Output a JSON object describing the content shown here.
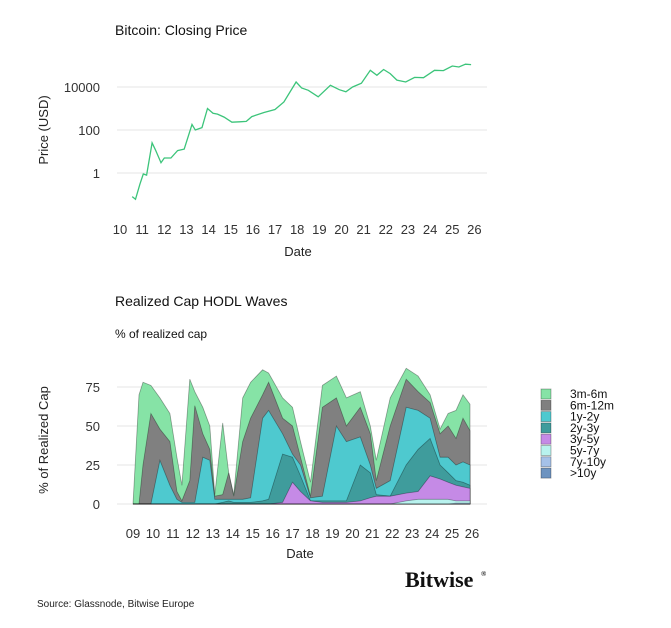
{
  "chart_data": [
    {
      "type": "line",
      "title": "Bitcoin: Closing Price",
      "xlabel": "Date",
      "ylabel": "Price (USD)",
      "yscale": "log",
      "ylim": [
        0.03,
        150000
      ],
      "xlim": [
        2009.9,
        2026.1
      ],
      "grid": true,
      "x_ticks": [
        "10",
        "11",
        "12",
        "13",
        "14",
        "15",
        "16",
        "17",
        "18",
        "19",
        "20",
        "21",
        "22",
        "23",
        "24",
        "25",
        "26"
      ],
      "y_ticks": [
        "1",
        "100",
        "10000"
      ],
      "color": "#3cc47a",
      "x": [
        2010.55,
        2010.7,
        2010.9,
        2011.05,
        2011.2,
        2011.45,
        2011.6,
        2011.85,
        2012.0,
        2012.3,
        2012.6,
        2012.9,
        2013.25,
        2013.4,
        2013.7,
        2013.95,
        2014.2,
        2014.4,
        2014.7,
        2015.05,
        2015.4,
        2015.7,
        2015.95,
        2016.5,
        2017.0,
        2017.4,
        2017.95,
        2018.2,
        2018.5,
        2018.95,
        2019.5,
        2019.9,
        2020.2,
        2020.5,
        2020.9,
        2021.3,
        2021.6,
        2021.9,
        2022.2,
        2022.5,
        2022.9,
        2023.3,
        2023.7,
        2024.2,
        2024.6,
        2025.0,
        2025.3,
        2025.6,
        2025.85
      ],
      "y": [
        0.08,
        0.06,
        0.3,
        0.9,
        0.8,
        25,
        12,
        3,
        5,
        5,
        11,
        13,
        180,
        100,
        130,
        1000,
        600,
        550,
        400,
        230,
        240,
        250,
        420,
        650,
        900,
        2000,
        17000,
        9000,
        7000,
        3500,
        12000,
        7500,
        6000,
        10000,
        15000,
        60000,
        35000,
        65000,
        42000,
        21000,
        17000,
        28000,
        27000,
        60000,
        58000,
        95000,
        85000,
        115000,
        110000
      ]
    },
    {
      "type": "area",
      "stacked": true,
      "title": "Realized Cap HODL Waves",
      "subtitle": "% of realized cap",
      "xlabel": "Date",
      "ylabel": "% of Realized Cap",
      "ylim": [
        0,
        90
      ],
      "xlim": [
        2008.9,
        2026.1
      ],
      "grid": true,
      "legend_position": "right",
      "x_ticks": [
        "09",
        "10",
        "11",
        "12",
        "13",
        "14",
        "15",
        "16",
        "17",
        "18",
        "19",
        "20",
        "21",
        "22",
        "23",
        "24",
        "25",
        "26"
      ],
      "y_ticks": [
        "0",
        "25",
        "50",
        "75"
      ],
      "x": [
        2009.0,
        2009.3,
        2009.5,
        2009.9,
        2010.35,
        2010.85,
        2011.2,
        2011.45,
        2011.85,
        2012.1,
        2012.5,
        2012.85,
        2013.1,
        2013.5,
        2013.8,
        2014.05,
        2014.5,
        2014.9,
        2015.5,
        2015.8,
        2016.5,
        2017.0,
        2017.4,
        2017.9,
        2018.5,
        2019.2,
        2019.7,
        2020.4,
        2020.9,
        2021.2,
        2021.9,
        2022.7,
        2023.3,
        2023.9,
        2024.4,
        2024.8,
        2025.2,
        2025.55,
        2025.9
      ],
      "series": [
        {
          "name": ">10y",
          "color": "#6d93c0",
          "values": [
            0,
            0,
            0,
            0,
            0,
            0,
            0,
            0,
            0,
            0,
            0,
            0,
            0,
            0,
            0,
            0,
            0,
            0,
            0,
            0,
            0,
            0,
            0,
            0,
            0,
            0,
            0,
            0,
            0,
            0,
            0,
            0,
            0,
            0,
            0,
            0,
            0,
            0,
            0
          ]
        },
        {
          "name": "7y-10y",
          "color": "#a5c1e8",
          "values": [
            0,
            0,
            0,
            0,
            0,
            0,
            0,
            0,
            0,
            0,
            0,
            0,
            0,
            0,
            0,
            0,
            0,
            0,
            0,
            0,
            0,
            0,
            0,
            0,
            0,
            0,
            0,
            0,
            0,
            0,
            0,
            0,
            0,
            0,
            0,
            0,
            0.5,
            0.5,
            0.5
          ]
        },
        {
          "name": "5y-7y",
          "color": "#b8f2ee",
          "values": [
            0,
            0,
            0,
            0,
            0,
            0,
            0,
            0,
            0,
            0,
            0,
            0,
            0,
            0,
            0,
            0,
            0,
            0,
            0,
            0,
            0,
            0,
            0,
            0,
            0,
            0,
            0,
            0,
            0,
            0,
            0,
            2,
            3,
            3,
            3,
            3,
            1.5,
            1.5,
            1.5
          ]
        },
        {
          "name": "3y-5y",
          "color": "#c58ae6",
          "values": [
            0,
            0,
            0,
            0,
            0,
            0,
            0,
            0,
            0,
            0,
            0,
            0,
            0,
            0,
            0,
            0,
            0,
            0,
            0,
            0,
            1,
            14,
            8,
            2,
            1,
            1,
            1,
            2,
            4,
            5,
            5,
            5,
            5,
            15,
            13,
            11,
            10,
            9,
            8
          ]
        },
        {
          "name": "2y-3y",
          "color": "#3f9c9c",
          "values": [
            0,
            0,
            0,
            0,
            0,
            0,
            0,
            0,
            0,
            0,
            0,
            0,
            0,
            1,
            2,
            1,
            1,
            1,
            2,
            3,
            31,
            16,
            10,
            0,
            1,
            1,
            1,
            23,
            16,
            1,
            0,
            18,
            27,
            24,
            9,
            6,
            3,
            3,
            2
          ]
        },
        {
          "name": "1y-2y",
          "color": "#4ec9cf",
          "values": [
            0,
            0,
            0,
            0,
            28,
            12,
            3,
            1,
            1,
            1,
            30,
            28,
            3,
            2,
            1,
            2,
            2,
            3,
            53,
            57,
            13,
            2,
            7,
            2,
            3,
            48,
            38,
            18,
            5,
            4,
            10,
            37,
            25,
            13,
            5,
            10,
            10,
            13,
            13
          ]
        },
        {
          "name": "6m-12m",
          "color": "#808080",
          "values": [
            0,
            0,
            25,
            58,
            20,
            28,
            5,
            1,
            14,
            62,
            15,
            7,
            2,
            3,
            17,
            2,
            37,
            51,
            15,
            18,
            10,
            18,
            5,
            1,
            57,
            18,
            10,
            19,
            20,
            5,
            35,
            18,
            12,
            10,
            15,
            20,
            17,
            28,
            22
          ]
        },
        {
          "name": "3m-6m",
          "color": "#86e3a6",
          "values": [
            0,
            70,
            53,
            18,
            20,
            18,
            22,
            10,
            65,
            9,
            17,
            15,
            1,
            46,
            0,
            1,
            28,
            23,
            16,
            6,
            13,
            12,
            10,
            9,
            14,
            14,
            18,
            10,
            5,
            13,
            18,
            7,
            10,
            5,
            3,
            8,
            18,
            15,
            17
          ]
        }
      ]
    }
  ],
  "legend": [
    "3m-6m",
    "6m-12m",
    "1y-2y",
    "2y-3y",
    "3y-5y",
    "5y-7y",
    "7y-10y",
    ">10y"
  ],
  "footer": {
    "source": "Source: Glassnode, Bitwise Europe",
    "logo": "Bitwise",
    "logo_mark": "®"
  }
}
